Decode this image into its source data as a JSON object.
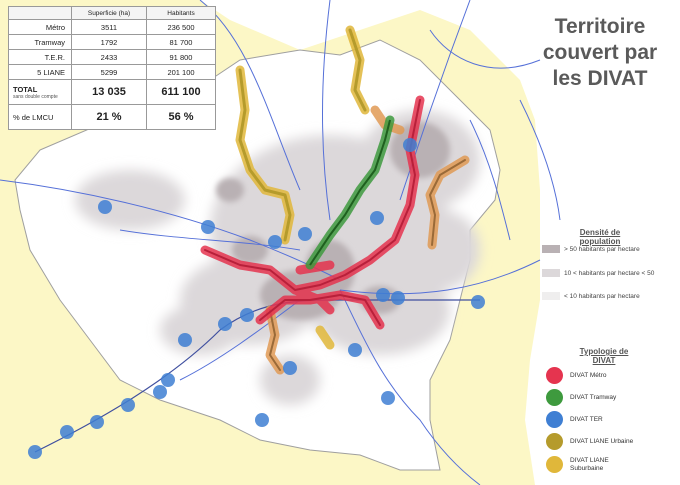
{
  "title": "Territoire couvert par les DIVAT",
  "table": {
    "headers": [
      "",
      "Superficie (ha)",
      "Habitants"
    ],
    "rows": [
      {
        "label": "Métro",
        "superficie": "3511",
        "habitants": "236 500"
      },
      {
        "label": "Tramway",
        "superficie": "1792",
        "habitants": "81 700"
      },
      {
        "label": "T.E.R.",
        "superficie": "2433",
        "habitants": "91 800"
      },
      {
        "label": "5 LIANE",
        "superficie": "5299",
        "habitants": "201 100"
      }
    ],
    "total": {
      "label": "TOTAL",
      "sublabel": "sans double compte",
      "superficie": "13 035",
      "habitants": "611 100"
    },
    "share": {
      "label": "% de LMCU",
      "superficie": "21 %",
      "habitants": "56 %"
    }
  },
  "legend": {
    "density_title": "Densité de population",
    "density": [
      {
        "label": "> 50 habitants par hectare",
        "color": "#b9b1b4"
      },
      {
        "label": "10 < habitants par hectare < 50",
        "color": "#dcd8da"
      },
      {
        "label": "< 10 habitants par hectare",
        "color": "#efeeee"
      }
    ],
    "typology_title": "Typologie de DIVAT",
    "typology": [
      {
        "label": "DIVAT Métro",
        "sublabel": "",
        "color": "#e5344f"
      },
      {
        "label": "DIVAT Tramway",
        "sublabel": "",
        "color": "#3e9a3e"
      },
      {
        "label": "DIVAT TER",
        "sublabel": "",
        "color": "#3f7fd3"
      },
      {
        "label": "DIVAT LIANE Urbaine",
        "sublabel": "",
        "color": "#b59b2c"
      },
      {
        "label": "DIVAT LIANE",
        "sublabel": "Suburbaine",
        "color": "#e0b73a"
      }
    ]
  },
  "colors": {
    "background_yellow": "#fcf7c6",
    "metro": "#e5344f",
    "tramway": "#3e9a3e",
    "ter": "#3f7fd3",
    "liane_urbaine": "#b59b2c",
    "liane_suburbaine": "#e0b73a",
    "roads": "#5570d8"
  }
}
